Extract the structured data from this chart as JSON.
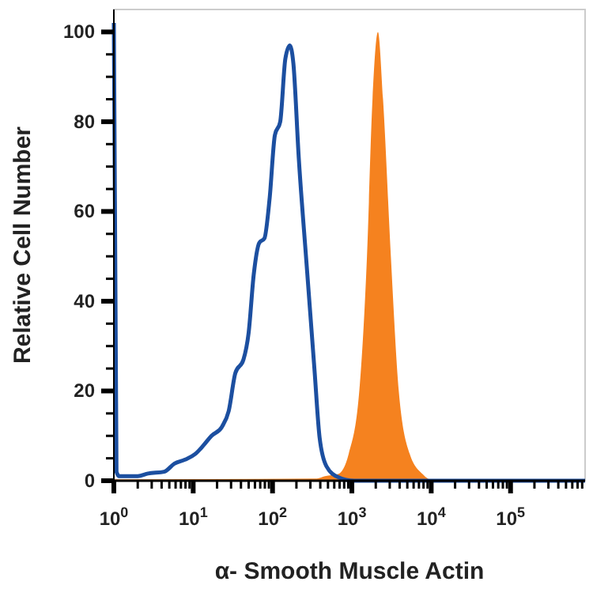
{
  "chart_data": {
    "type": "line",
    "xlabel": "α- Smooth Muscle Actin",
    "ylabel": "Relative Cell Number",
    "log": "x",
    "grid": false,
    "marker": "none",
    "xlim": [
      1,
      870000
    ],
    "ylim": [
      0,
      105
    ],
    "xticks": [
      {
        "value": 1,
        "label": "10$^{0}$"
      },
      {
        "value": 2,
        "label": null
      },
      {
        "value": 3,
        "label": null
      },
      {
        "value": 4,
        "label": null
      },
      {
        "value": 5,
        "label": null
      },
      {
        "value": 6,
        "label": null
      },
      {
        "value": 7,
        "label": null
      },
      {
        "value": 8,
        "label": null
      },
      {
        "value": 9,
        "label": null
      },
      {
        "value": 10,
        "label": "10$^{1}$"
      },
      {
        "value": 20,
        "label": null
      },
      {
        "value": 30,
        "label": null
      },
      {
        "value": 40,
        "label": null
      },
      {
        "value": 50,
        "label": null
      },
      {
        "value": 60,
        "label": null
      },
      {
        "value": 70,
        "label": null
      },
      {
        "value": 80,
        "label": null
      },
      {
        "value": 90,
        "label": null
      },
      {
        "value": 100,
        "label": "10$^{2}$"
      },
      {
        "value": 200,
        "label": null
      },
      {
        "value": 300,
        "label": null
      },
      {
        "value": 400,
        "label": null
      },
      {
        "value": 500,
        "label": null
      },
      {
        "value": 600,
        "label": null
      },
      {
        "value": 700,
        "label": null
      },
      {
        "value": 800,
        "label": null
      },
      {
        "value": 900,
        "label": null
      },
      {
        "value": 1000,
        "label": "10$^{3}$"
      },
      {
        "value": 2000,
        "label": null
      },
      {
        "value": 3000,
        "label": null
      },
      {
        "value": 4000,
        "label": null
      },
      {
        "value": 5000,
        "label": null
      },
      {
        "value": 6000,
        "label": null
      },
      {
        "value": 7000,
        "label": null
      },
      {
        "value": 8000,
        "label": null
      },
      {
        "value": 9000,
        "label": null
      },
      {
        "value": 10000,
        "label": "10$^{4}$"
      },
      {
        "value": 20000,
        "label": null
      },
      {
        "value": 30000,
        "label": null
      },
      {
        "value": 40000,
        "label": null
      },
      {
        "value": 50000,
        "label": null
      },
      {
        "value": 60000,
        "label": null
      },
      {
        "value": 70000,
        "label": null
      },
      {
        "value": 80000,
        "label": null
      },
      {
        "value": 90000,
        "label": null
      },
      {
        "value": 100000,
        "label": "10$^{5}$"
      },
      {
        "value": 200000,
        "label": null
      },
      {
        "value": 300000,
        "label": null
      },
      {
        "value": 400000,
        "label": null
      },
      {
        "value": 500000,
        "label": null
      },
      {
        "value": 600000,
        "label": null
      },
      {
        "value": 700000,
        "label": null
      },
      {
        "value": 800000,
        "label": null
      }
    ],
    "yticks": [
      0,
      {
        "value": 5,
        "label": null
      },
      {
        "value": 10,
        "label": null
      },
      {
        "value": 15,
        "label": null
      },
      20,
      {
        "value": 25,
        "label": null
      },
      {
        "value": 30,
        "label": null
      },
      {
        "value": 35,
        "label": null
      },
      40,
      {
        "value": 45,
        "label": null
      },
      {
        "value": 50,
        "label": null
      },
      {
        "value": 55,
        "label": null
      },
      60,
      {
        "value": 65,
        "label": null
      },
      {
        "value": 70,
        "label": null
      },
      {
        "value": 75,
        "label": null
      },
      80,
      {
        "value": 85,
        "label": null
      },
      {
        "value": 90,
        "label": null
      },
      {
        "value": 95,
        "label": null
      },
      100
    ],
    "series": [
      {
        "type": "area",
        "color": "#f5821f",
        "x": [
          1,
          363,
          457,
          673,
          912,
          1240,
          1550,
          1820,
          2130,
          2470,
          3100,
          3900,
          5360,
          7780,
          10700,
          870000
        ],
        "values": [
          0.3,
          0.5,
          1,
          1.5,
          6,
          20,
          50,
          85,
          100,
          85,
          50,
          20,
          6,
          1.5,
          0,
          0
        ]
      },
      {
        "color": "#1c4fa0",
        "x": [
          1,
          1.08,
          1.17,
          2,
          2.7,
          4.3,
          5.8,
          7.9,
          10.7,
          13.5,
          17,
          23,
          28,
          34,
          43,
          50,
          58,
          68,
          79,
          92,
          107,
          125,
          145,
          165,
          183,
          214,
          268,
          337,
          392,
          479,
          673,
          1070,
          870000
        ],
        "values": [
          102,
          2,
          1,
          1,
          1.6,
          2,
          3.8,
          4.7,
          6,
          7.9,
          10,
          12,
          15.5,
          24,
          27,
          33,
          46,
          53,
          54,
          63,
          77,
          80,
          94,
          97,
          93,
          72,
          48.5,
          25,
          9.6,
          3.2,
          0.8,
          0,
          0
        ]
      }
    ]
  }
}
